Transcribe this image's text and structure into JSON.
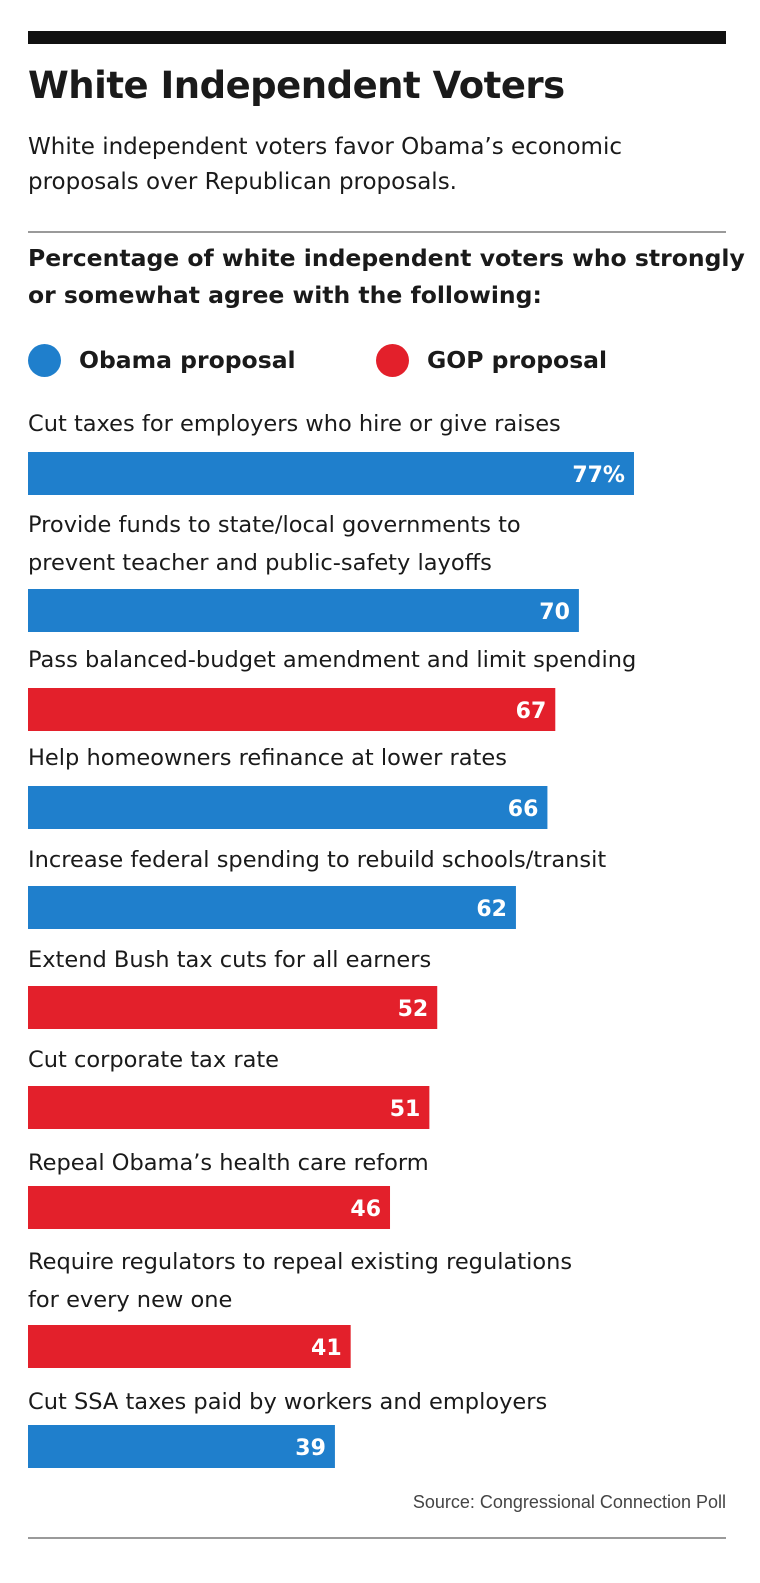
{
  "title": "White Independent Voters",
  "subtitle": "White independent voters favor Obama’s economic proposals over Republican proposals.",
  "heading": "Percentage of white independent voters who strongly or somewhat agree with the following:",
  "legend": [
    {
      "label": "Obama proposal",
      "color": "#1f7fcc"
    },
    {
      "label": "GOP proposal",
      "color": "#e3202b"
    }
  ],
  "source": "Source: Congressional Connection Poll",
  "chart_data": {
    "type": "bar",
    "orientation": "horizontal",
    "series": [
      {
        "name": "Obama proposal",
        "color": "#1f7fcc"
      },
      {
        "name": "GOP proposal",
        "color": "#e3202b"
      }
    ],
    "items": [
      {
        "label_lines": [
          "Cut taxes for employers who hire or give raises"
        ],
        "value": 77,
        "value_label": "77%",
        "series": "Obama proposal"
      },
      {
        "label_lines": [
          "Provide funds to state/local governments to",
          "prevent teacher and public-safety layoffs"
        ],
        "value": 70,
        "value_label": "70",
        "series": "Obama proposal"
      },
      {
        "label_lines": [
          "Pass balanced-budget amendment and limit spending"
        ],
        "value": 67,
        "value_label": "67",
        "series": "GOP proposal"
      },
      {
        "label_lines": [
          "Help homeowners refinance at lower rates"
        ],
        "value": 66,
        "value_label": "66",
        "series": "Obama proposal"
      },
      {
        "label_lines": [
          "Increase federal spending to rebuild schools/transit"
        ],
        "value": 62,
        "value_label": "62",
        "series": "Obama proposal"
      },
      {
        "label_lines": [
          "Extend Bush tax cuts for all earners"
        ],
        "value": 52,
        "value_label": "52",
        "series": "GOP proposal"
      },
      {
        "label_lines": [
          "Cut corporate tax rate"
        ],
        "value": 51,
        "value_label": "51",
        "series": "GOP proposal"
      },
      {
        "label_lines": [
          "Repeal Obama’s health care reform"
        ],
        "value": 46,
        "value_label": "46",
        "series": "GOP proposal"
      },
      {
        "label_lines": [
          "Require regulators to repeal existing regulations",
          "for every new one"
        ],
        "value": 41,
        "value_label": "41",
        "series": "GOP proposal"
      },
      {
        "label_lines": [
          "Cut SSA taxes paid by workers and employers"
        ],
        "value": 39,
        "value_label": "39",
        "series": "Obama proposal"
      }
    ],
    "xlim": [
      0,
      100
    ],
    "grid": false,
    "legend_position": "top"
  }
}
